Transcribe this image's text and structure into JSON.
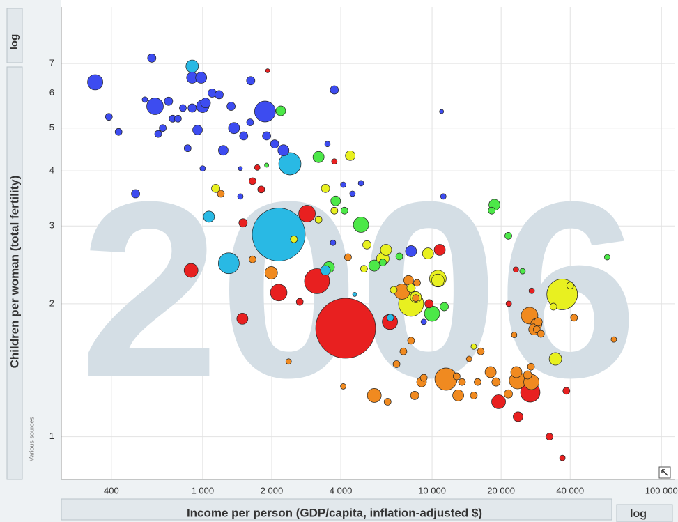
{
  "chart_data": {
    "type": "bubble",
    "year": "2006",
    "xlabel": "Income per person (GDP/capita, inflation-adjusted $)",
    "ylabel": "Children per woman (total fertility)",
    "source": "Various sources",
    "xscale_label": "log",
    "yscale_label": "log",
    "xlog": true,
    "ylog": true,
    "grid": true,
    "xlim": [
      242,
      114000
    ],
    "ylim": [
      0.8,
      9.4
    ],
    "xticks": [
      400,
      {
        "value": 1000,
        "label": "1 000"
      },
      {
        "value": 2000,
        "label": "2 000"
      },
      {
        "value": 4000,
        "label": "4 000"
      },
      {
        "value": 10000,
        "label": "10 000"
      },
      {
        "value": 20000,
        "label": "20 000"
      },
      {
        "value": 40000,
        "label": "40 000"
      },
      {
        "value": 100000,
        "label": "100 000"
      }
    ],
    "yticks": [
      1,
      2,
      3,
      4,
      5,
      6,
      7
    ],
    "series": [
      {
        "color": "#3d4cf0",
        "x": [
          340,
          600,
          390,
          430,
          510,
          560,
          620,
          710,
          640,
          670,
          740,
          780,
          820,
          900,
          900,
          985,
          1000,
          1030,
          950,
          860,
          1000,
          1100,
          1180,
          1330,
          1620,
          1230,
          1370,
          1510,
          1610,
          1870,
          1900,
          2060,
          2250,
          1460,
          1460,
          3750,
          3500,
          4100,
          4500,
          4900,
          8100,
          11000,
          11200,
          9200,
          3700
        ],
        "values": [
          6.35,
          7.2,
          5.3,
          4.9,
          3.55,
          5.8,
          5.6,
          5.75,
          4.85,
          5.0,
          5.25,
          5.25,
          5.55,
          5.55,
          6.5,
          6.5,
          5.6,
          5.7,
          4.95,
          4.5,
          4.05,
          6.0,
          5.95,
          5.6,
          6.4,
          4.45,
          5.0,
          4.8,
          5.15,
          5.45,
          4.8,
          4.6,
          4.45,
          4.05,
          3.5,
          6.1,
          4.6,
          3.72,
          3.55,
          3.75,
          2.63,
          5.45,
          3.5,
          1.82,
          2.75
        ],
        "sizes": [
          11,
          6,
          5,
          5,
          6,
          4,
          12,
          6,
          5,
          5,
          5,
          5,
          5,
          6,
          8,
          8,
          9,
          7,
          7,
          5,
          4,
          6,
          6,
          6,
          6,
          7,
          8,
          6,
          5,
          15,
          6,
          6,
          8,
          3,
          4,
          6,
          4,
          4,
          4,
          4,
          8,
          3,
          4,
          4,
          4
        ]
      },
      {
        "color": "#29b9e4",
        "x": [
          900,
          1065,
          1300,
          2400,
          2145,
          3430,
          4600,
          6575
        ],
        "values": [
          6.9,
          3.15,
          2.47,
          4.15,
          2.87,
          2.38,
          2.1,
          1.86
        ],
        "sizes": [
          9,
          8,
          15,
          16,
          38,
          7,
          3,
          5
        ]
      },
      {
        "color": "#4ce848",
        "x": [
          2190,
          3200,
          3800,
          4150,
          4900,
          5600,
          6100,
          7200,
          10000,
          11300,
          18700,
          18200,
          21500,
          24800,
          58000,
          3550,
          1900
        ],
        "values": [
          5.47,
          4.3,
          3.42,
          3.25,
          3.02,
          2.44,
          2.48,
          2.56,
          1.9,
          1.97,
          3.35,
          3.25,
          2.85,
          2.37,
          2.55,
          2.42,
          4.12
        ],
        "sizes": [
          7,
          8,
          7,
          5,
          11,
          8,
          5,
          5,
          11,
          6,
          8,
          5,
          5,
          4,
          4,
          8,
          3
        ]
      },
      {
        "color": "#e8f020",
        "x": [
          1140,
          4400,
          3430,
          3750,
          3200,
          5200,
          6300,
          6100,
          5050,
          8100,
          8100,
          8500,
          9600,
          10600,
          10600,
          2500,
          34500,
          36900,
          40000,
          33800,
          6800,
          15200
        ],
        "values": [
          3.65,
          4.33,
          3.65,
          3.25,
          3.1,
          2.72,
          2.65,
          2.53,
          2.4,
          2.17,
          2.0,
          2.07,
          2.6,
          2.28,
          2.26,
          2.8,
          1.5,
          2.1,
          2.2,
          1.97,
          2.15,
          1.6
        ],
        "sizes": [
          6,
          7,
          6,
          5,
          5,
          6,
          8,
          9,
          5,
          6,
          18,
          8,
          8,
          12,
          9,
          5,
          9,
          22,
          5,
          5,
          5,
          4
        ]
      },
      {
        "color": "#f08a20",
        "x": [
          1200,
          1650,
          1990,
          2370,
          4300,
          4100,
          5600,
          6400,
          7400,
          7900,
          8600,
          8500,
          8100,
          7500,
          7000,
          8400,
          9000,
          9200,
          11500,
          12800,
          13000,
          13500,
          14500,
          15800,
          16300,
          15200,
          18000,
          19000,
          21500,
          23300,
          23600,
          27100,
          26100,
          26600,
          28500,
          27900,
          29000,
          28600,
          29800,
          41600,
          62000,
          27000,
          22800
        ],
        "values": [
          3.55,
          2.52,
          2.35,
          1.48,
          2.55,
          1.3,
          1.24,
          1.2,
          2.13,
          2.26,
          2.23,
          2.06,
          1.65,
          1.56,
          1.46,
          1.24,
          1.33,
          1.36,
          1.35,
          1.37,
          1.24,
          1.33,
          1.5,
          1.33,
          1.56,
          1.24,
          1.4,
          1.33,
          1.25,
          1.4,
          1.34,
          1.33,
          1.38,
          1.88,
          1.8,
          1.75,
          1.82,
          1.75,
          1.71,
          1.86,
          1.66,
          1.44,
          1.7
        ],
        "sizes": [
          5,
          5,
          9,
          4,
          5,
          4,
          10,
          5,
          11,
          7,
          5,
          5,
          5,
          5,
          5,
          6,
          7,
          5,
          16,
          5,
          8,
          5,
          4,
          5,
          5,
          5,
          8,
          6,
          6,
          8,
          12,
          11,
          6,
          12,
          8,
          8,
          6,
          5,
          5,
          5,
          4,
          5,
          4
        ]
      },
      {
        "color": "#e82020",
        "x": [
          1920,
          1650,
          1800,
          1500,
          2850,
          890,
          2145,
          3150,
          4200,
          6550,
          1490,
          2650,
          10800,
          9700,
          19500,
          23700,
          26800,
          32500,
          37000,
          38500,
          23200,
          27200,
          21600,
          3750,
          1730
        ],
        "values": [
          6.74,
          3.79,
          3.63,
          3.05,
          3.2,
          2.38,
          2.12,
          2.25,
          1.76,
          1.82,
          1.85,
          2.02,
          2.65,
          2.0,
          1.2,
          1.11,
          1.26,
          1.0,
          0.895,
          1.27,
          2.39,
          2.14,
          2.0,
          4.2,
          4.07
        ],
        "sizes": [
          3,
          5,
          5,
          6,
          12,
          10,
          12,
          18,
          43,
          11,
          8,
          5,
          8,
          6,
          10,
          7,
          14,
          5,
          4,
          5,
          4,
          4,
          4,
          4,
          4
        ]
      }
    ]
  }
}
